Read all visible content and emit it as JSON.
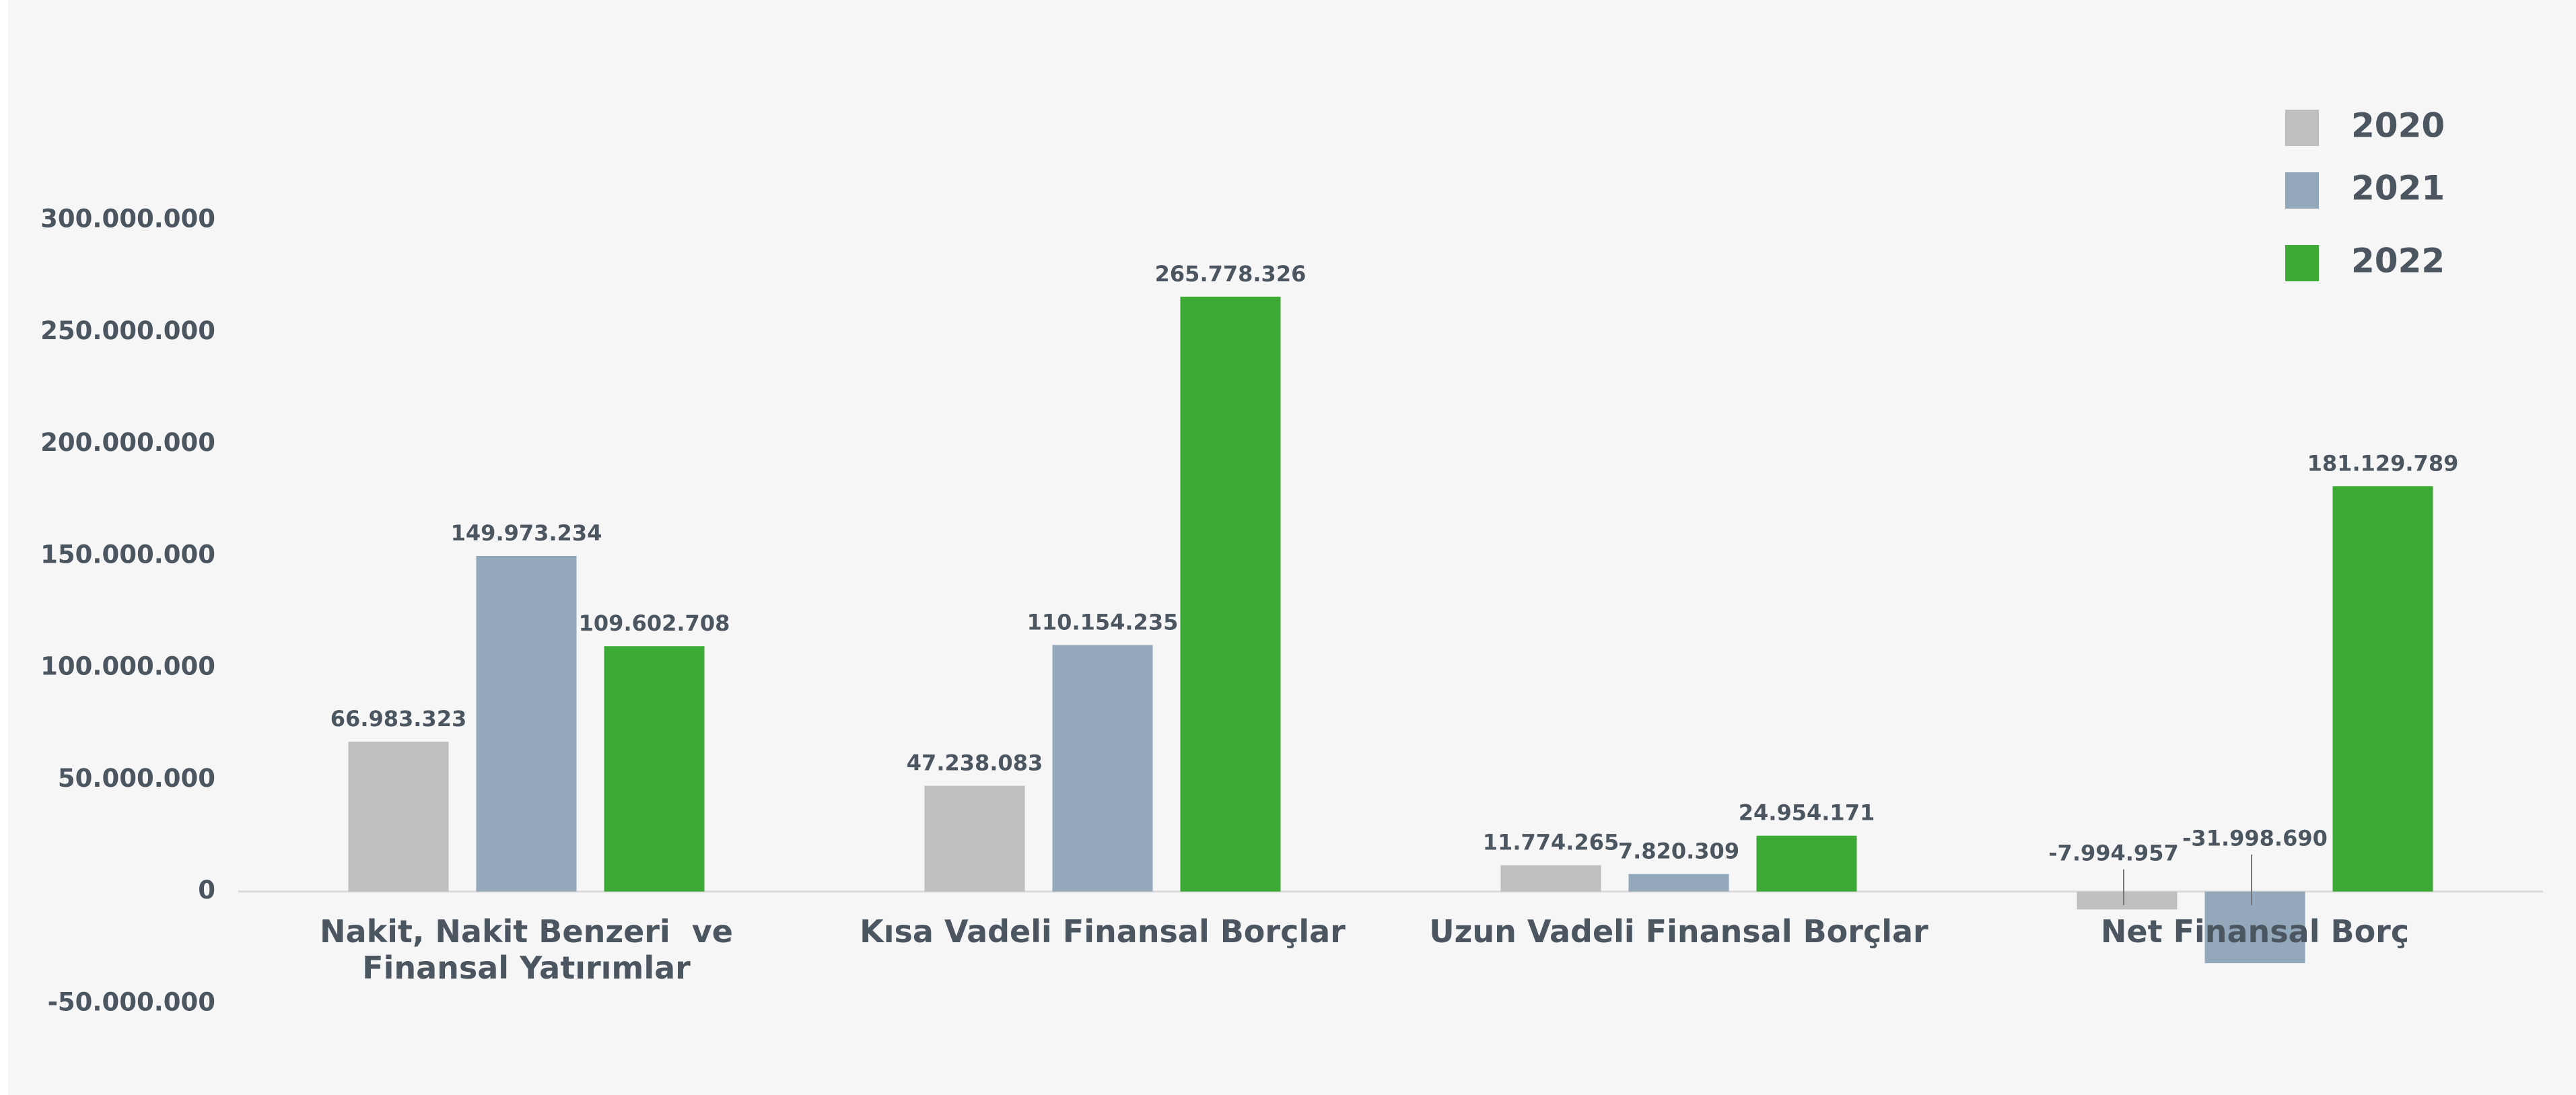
{
  "chart_data": {
    "type": "bar",
    "categories": [
      "Nakit, Nakit Benzeri  ve Finansal Yatırımlar",
      "Kısa Vadeli Finansal Borçlar",
      "Uzun Vadeli Finansal Borçlar",
      "Net Finansal Borç"
    ],
    "series": [
      {
        "name": "2020",
        "color": "#bfbfbf",
        "values": [
          66983323,
          47238083,
          11774265,
          -7994957
        ],
        "value_labels": [
          "66.983.323",
          "47.238.083",
          "11.774.265",
          "-7.994.957"
        ]
      },
      {
        "name": "2021",
        "color": "#93a9bb",
        "values": [
          149973234,
          110154235,
          7820309,
          -31998690
        ],
        "value_labels": [
          "149.973.234",
          "110.154.235",
          "7.820.309",
          "-31.998.690"
        ]
      },
      {
        "name": "2022",
        "color": "#3daa35",
        "values": [
          109602708,
          265778326,
          24954171,
          181129789
        ],
        "value_labels": [
          "109.602.708",
          "265.778.326",
          "24.954.171",
          "181.129.789"
        ]
      }
    ],
    "ylim": [
      -50000000,
      300000000
    ],
    "yticks": [
      {
        "value": -50000000,
        "label": "-50.000.000"
      },
      0,
      {
        "value": 50000000,
        "label": "50.000.000"
      },
      {
        "value": 100000000,
        "label": "100.000.000"
      },
      {
        "value": 150000000,
        "label": "150.000.000"
      },
      {
        "value": 200000000,
        "label": "200.000.000"
      },
      {
        "value": 250000000,
        "label": "250.000.000"
      },
      {
        "value": 300000000,
        "label": "300.000.000"
      }
    ],
    "grid": false,
    "legend": "top-right"
  }
}
